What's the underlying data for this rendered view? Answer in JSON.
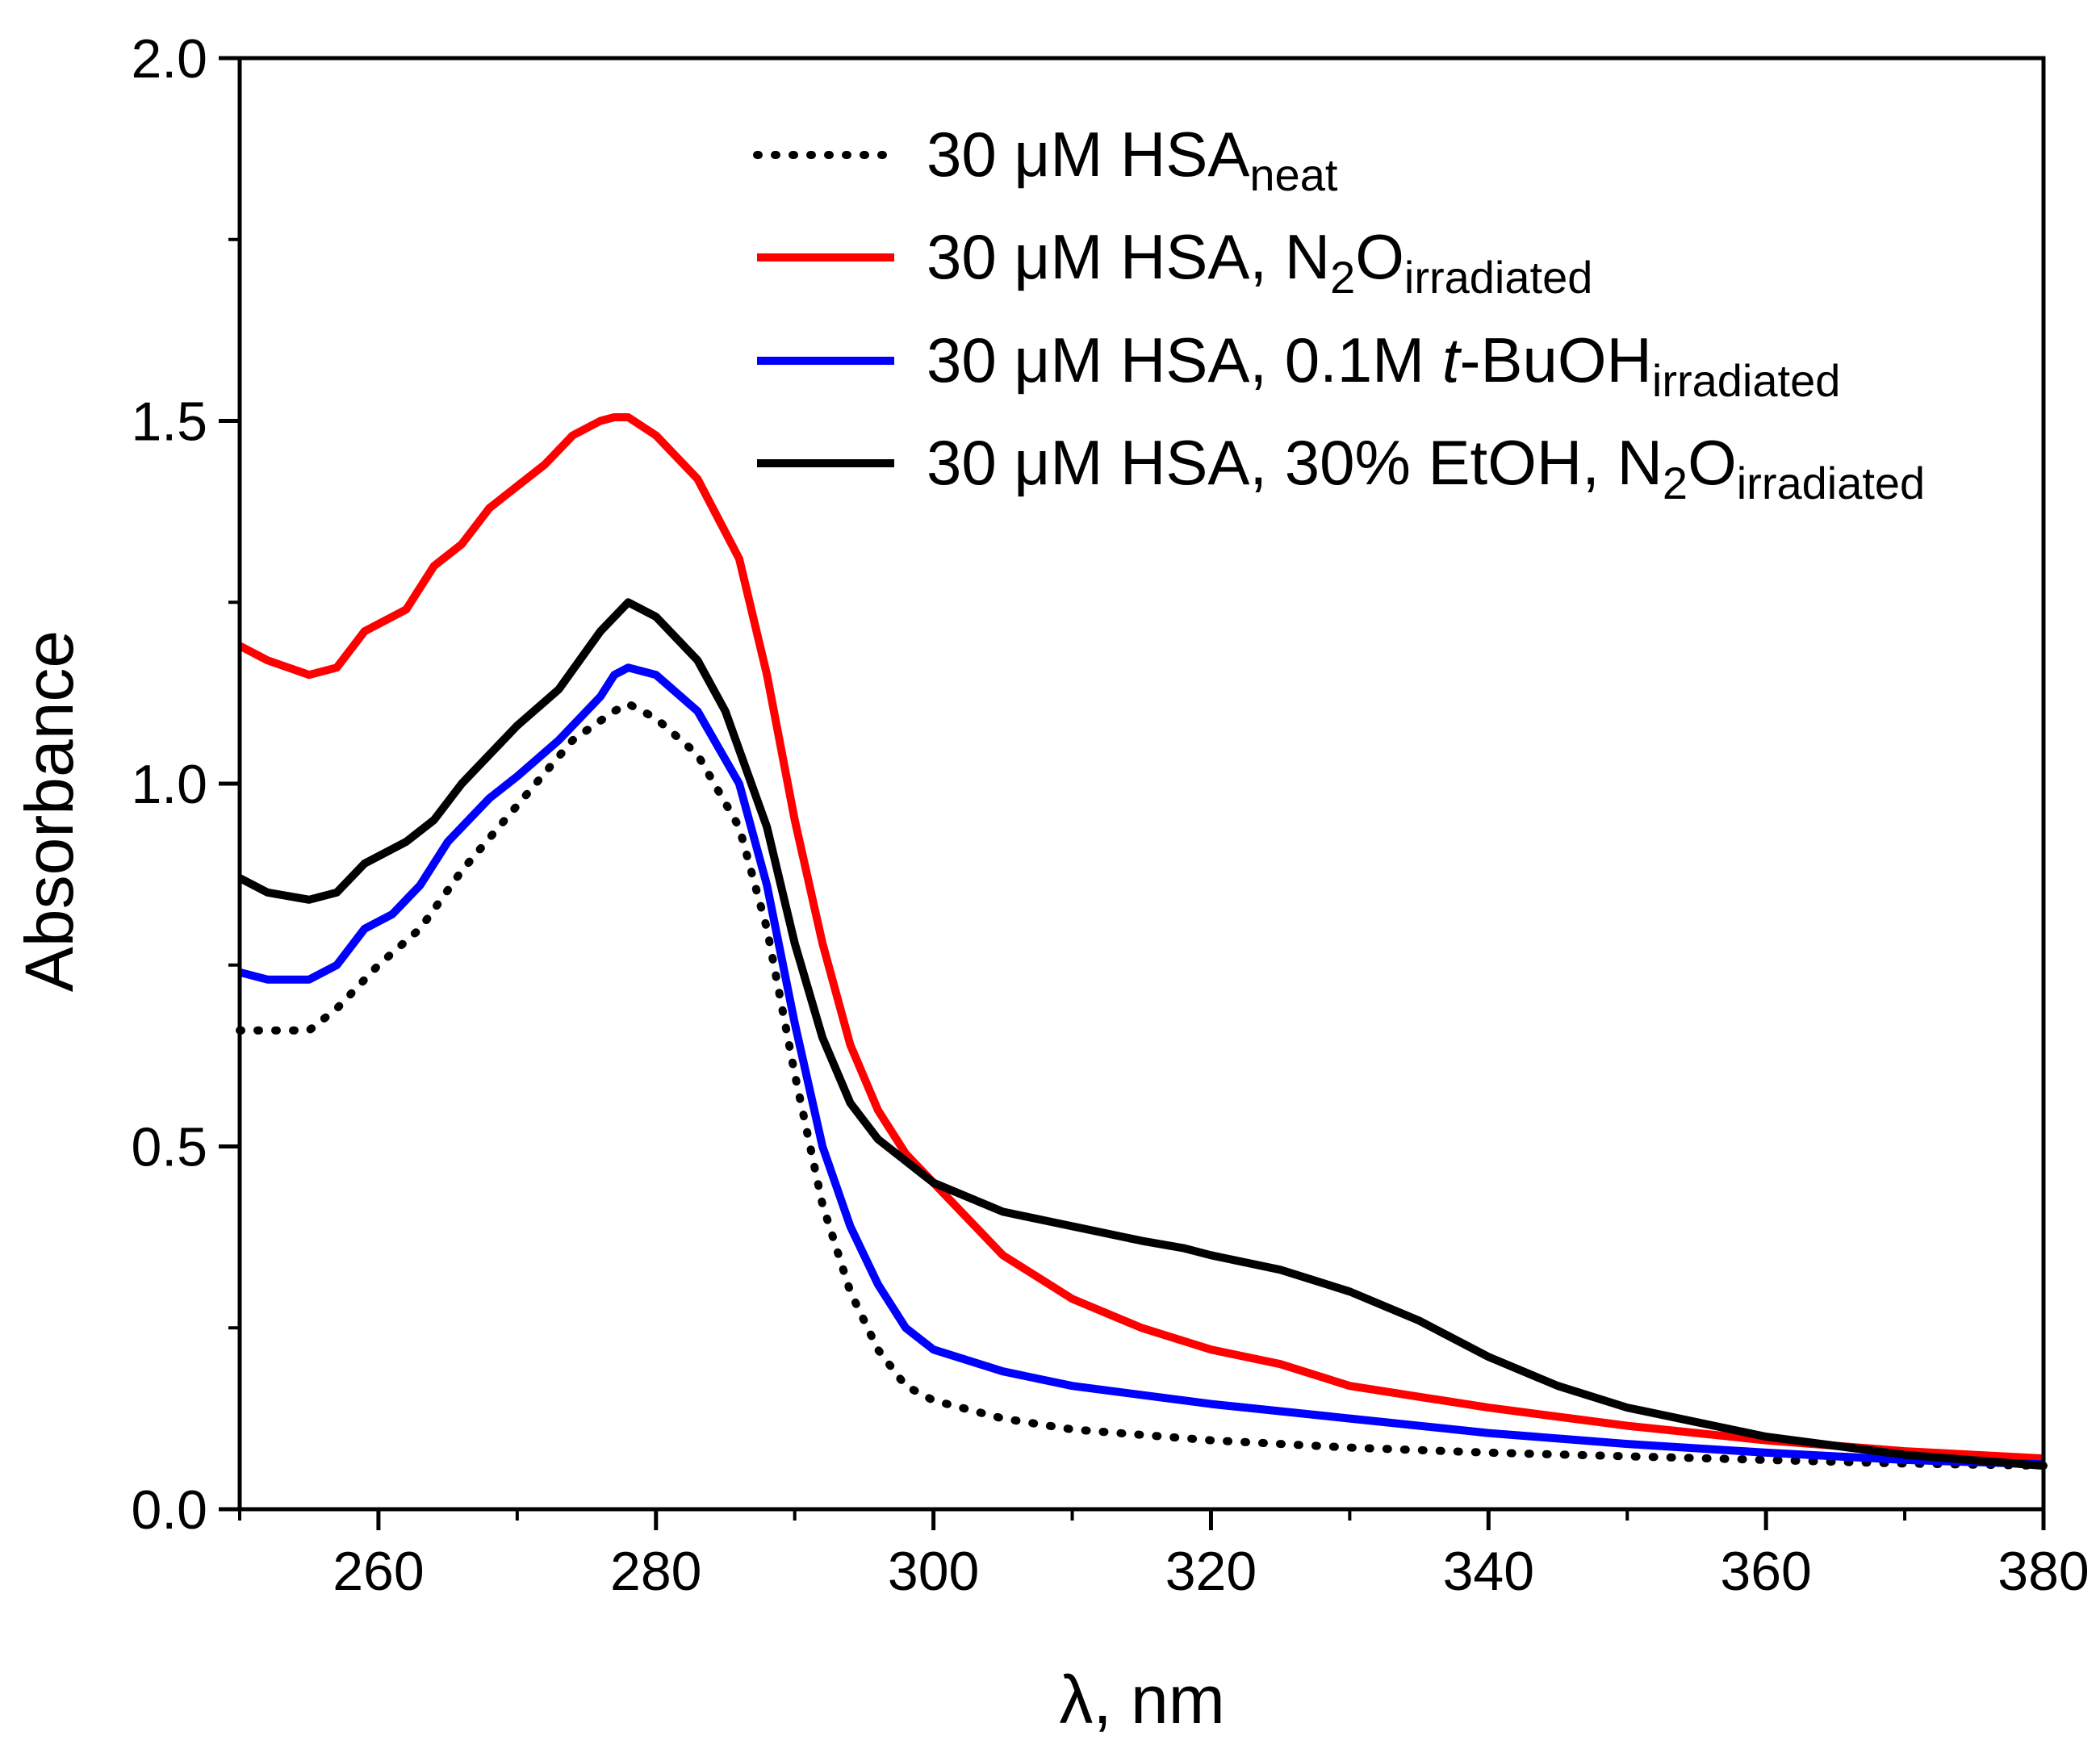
{
  "chart_data": {
    "type": "line",
    "title": "",
    "xlabel": "λ, nm",
    "ylabel": "Absorbance",
    "xlim": [
      250,
      380
    ],
    "ylim": [
      0.0,
      2.0
    ],
    "xticks": [
      260,
      280,
      300,
      320,
      340,
      360,
      380
    ],
    "xtick_labels": [
      "260",
      "280",
      "300",
      "320",
      "340",
      "360",
      "380"
    ],
    "yticks": [
      0.0,
      0.5,
      1.0,
      1.5,
      2.0
    ],
    "ytick_labels": [
      "0.0",
      "0.5",
      "1.0",
      "1.5",
      "2.0"
    ],
    "grid": false,
    "legend_position": "top-right",
    "legend": [
      {
        "prefix": "30 μM HSA",
        "sub": "neat",
        "color": "#000000",
        "style": "dotted"
      },
      {
        "prefix": "30 μM HSA, N",
        "sub2": "2",
        "mid": "O",
        "sub": "irradiated",
        "color": "#ff0000",
        "style": "solid"
      },
      {
        "prefix": "30 μM HSA, 0.1M ",
        "italic": "t",
        "after": "-BuOH",
        "sub": "irradiated",
        "color": "#0000ff",
        "style": "solid"
      },
      {
        "prefix": "30 μM HSA, 30% EtOH, N",
        "sub2": "2",
        "mid": "O",
        "sub": "irradiated",
        "color": "#000000",
        "style": "solid"
      }
    ],
    "series": [
      {
        "name": "30 μM HSA neat",
        "color": "#000000",
        "style": "dotted",
        "x": [
          250,
          252,
          255,
          257,
          260,
          263,
          266,
          270,
          274,
          277,
          278,
          280,
          283,
          286,
          288,
          290,
          292,
          294,
          296,
          298,
          300,
          305,
          310,
          320,
          330,
          340,
          350,
          360,
          370,
          380
        ],
        "y": [
          0.66,
          0.66,
          0.66,
          0.69,
          0.75,
          0.8,
          0.88,
          0.97,
          1.06,
          1.1,
          1.11,
          1.09,
          1.04,
          0.94,
          0.8,
          0.6,
          0.42,
          0.3,
          0.22,
          0.17,
          0.15,
          0.125,
          0.11,
          0.095,
          0.085,
          0.078,
          0.073,
          0.068,
          0.063,
          0.06
        ]
      },
      {
        "name": "30 μM HSA, N2O irradiated",
        "color": "#ff0000",
        "style": "solid",
        "x": [
          250,
          252,
          255,
          257,
          259,
          262,
          264,
          266,
          268,
          270,
          272,
          274,
          276,
          277,
          278,
          280,
          283,
          286,
          288,
          290,
          292,
          294,
          296,
          298,
          300,
          305,
          310,
          315,
          320,
          325,
          330,
          340,
          350,
          360,
          370,
          380
        ],
        "y": [
          1.19,
          1.17,
          1.15,
          1.16,
          1.21,
          1.24,
          1.3,
          1.33,
          1.38,
          1.41,
          1.44,
          1.48,
          1.5,
          1.505,
          1.505,
          1.48,
          1.42,
          1.31,
          1.15,
          0.95,
          0.78,
          0.64,
          0.55,
          0.49,
          0.45,
          0.35,
          0.29,
          0.25,
          0.22,
          0.2,
          0.17,
          0.14,
          0.115,
          0.095,
          0.08,
          0.07
        ]
      },
      {
        "name": "30 μM HSA, 0.1M t-BuOH irradiated",
        "color": "#0000ff",
        "style": "solid",
        "x": [
          250,
          252,
          255,
          257,
          259,
          261,
          263,
          265,
          268,
          270,
          273,
          276,
          277,
          278,
          280,
          283,
          286,
          288,
          290,
          292,
          294,
          296,
          298,
          300,
          305,
          310,
          320,
          330,
          340,
          350,
          360,
          370,
          380
        ],
        "y": [
          0.74,
          0.73,
          0.73,
          0.75,
          0.8,
          0.82,
          0.86,
          0.92,
          0.98,
          1.01,
          1.06,
          1.12,
          1.15,
          1.16,
          1.15,
          1.1,
          1.0,
          0.86,
          0.67,
          0.5,
          0.39,
          0.31,
          0.25,
          0.22,
          0.19,
          0.17,
          0.145,
          0.125,
          0.105,
          0.09,
          0.078,
          0.068,
          0.062
        ]
      },
      {
        "name": "30 μM HSA, 30% EtOH, N2O irradiated",
        "color": "#000000",
        "style": "solid",
        "x": [
          250,
          252,
          255,
          257,
          259,
          262,
          264,
          266,
          268,
          270,
          273,
          276,
          278,
          280,
          283,
          285,
          288,
          290,
          292,
          294,
          296,
          298,
          300,
          305,
          310,
          315,
          318,
          320,
          325,
          330,
          335,
          340,
          345,
          350,
          360,
          370,
          380
        ],
        "y": [
          0.87,
          0.85,
          0.84,
          0.85,
          0.89,
          0.92,
          0.95,
          1.0,
          1.04,
          1.08,
          1.13,
          1.21,
          1.25,
          1.23,
          1.17,
          1.1,
          0.94,
          0.78,
          0.65,
          0.56,
          0.51,
          0.48,
          0.45,
          0.41,
          0.39,
          0.37,
          0.36,
          0.35,
          0.33,
          0.3,
          0.26,
          0.21,
          0.17,
          0.14,
          0.1,
          0.075,
          0.06
        ]
      }
    ]
  }
}
